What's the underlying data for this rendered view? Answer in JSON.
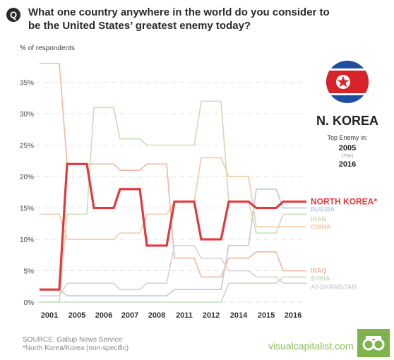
{
  "header": {
    "badge": "Q",
    "title": "What one country anywhere in the world do you consider to be the United States’ greatest enemy today?"
  },
  "sidebar": {
    "country": "N. KOREA",
    "top_enemy_label": "Top Enemy in:",
    "year1": "2005",
    "and_label": "(The)",
    "year2": "2016"
  },
  "footer": {
    "source": "SOURCE: Gallup News Service",
    "note": "*North Korea/Korea (non-specific)",
    "brand": "visualcapitalist.com"
  },
  "colors": {
    "north_korea": "#e03a3e",
    "russia": "#b8cbe4",
    "iran": "#c9ddb5",
    "china": "#f6c9a6",
    "iraq": "#f3b6a4",
    "syria": "#c8dcc0",
    "afghanistan": "#d3d3d3",
    "grid": "#e3e3e3",
    "brand": "#7fb44c"
  },
  "chart_data": {
    "type": "line",
    "ylabel": "% of respondents",
    "ylim": [
      0,
      38
    ],
    "yticks": [
      0,
      5,
      10,
      15,
      20,
      25,
      30,
      35
    ],
    "ytick_labels": [
      "0%",
      "5%",
      "10%",
      "15%",
      "20%",
      "25%",
      "30%",
      "35%"
    ],
    "categories": [
      "2001",
      "2005",
      "2006",
      "2007",
      "2008",
      "2011",
      "2012",
      "2014",
      "2015",
      "2016"
    ],
    "grid": true,
    "legend": "right",
    "series": [
      {
        "name": "RUSSIA",
        "color": "#b8cbe4",
        "values": [
          2,
          1,
          1,
          1,
          1,
          2,
          2,
          9,
          18,
          15
        ],
        "highlight": false
      },
      {
        "name": "IRAN",
        "color": "#c9ddb5",
        "values": [
          0,
          14,
          31,
          26,
          25,
          25,
          32,
          16,
          11,
          14
        ],
        "highlight": false
      },
      {
        "name": "CHINA",
        "color": "#f6c9a6",
        "values": [
          14,
          10,
          10,
          11,
          14,
          16,
          23,
          20,
          12,
          12
        ],
        "highlight": false
      },
      {
        "name": "IRAQ",
        "color": "#f3b6a4",
        "values": [
          38,
          22,
          22,
          21,
          22,
          7,
          4,
          7,
          8,
          5
        ],
        "highlight": false
      },
      {
        "name": "SYRIA",
        "color": "#c8dcc0",
        "values": [
          0,
          0,
          0,
          0,
          0,
          0,
          0,
          3,
          3,
          4
        ],
        "highlight": false
      },
      {
        "name": "AFGHANISTAN",
        "color": "#d3d3d3",
        "values": [
          1,
          3,
          3,
          2,
          3,
          9,
          7,
          5,
          4,
          3
        ],
        "highlight": false
      },
      {
        "name": "NORTH KOREA*",
        "color": "#e03a3e",
        "values": [
          2,
          22,
          15,
          18,
          9,
          16,
          10,
          16,
          15,
          16
        ],
        "highlight": true
      }
    ],
    "legend_labels": {
      "north_korea": "NORTH KOREA*",
      "russia": "RUSSIA",
      "iran": "IRAN",
      "china": "CHINA",
      "iraq": "IRAQ",
      "syria": "SYRIA",
      "afghanistan": "AFGHANISTAN"
    }
  }
}
